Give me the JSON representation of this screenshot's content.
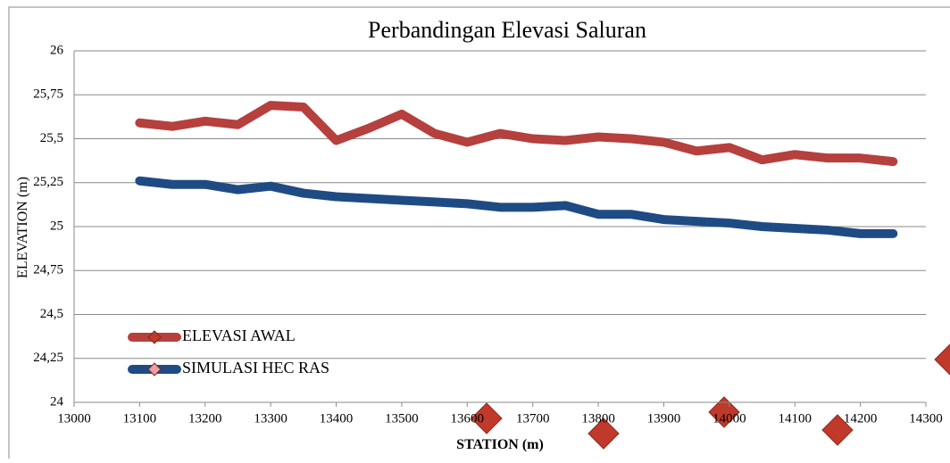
{
  "chart_data": {
    "type": "line",
    "title": "Perbandingan Elevasi Saluran",
    "x_label": "STATION (m)",
    "y_label": "ELEVATION (m)",
    "x": [
      13100,
      13150,
      13200,
      13250,
      13300,
      13350,
      13400,
      13450,
      13500,
      13550,
      13600,
      13650,
      13700,
      13750,
      13800,
      13850,
      13900,
      13950,
      14000,
      14050,
      14100,
      14150,
      14200,
      14250
    ],
    "series": [
      {
        "name": "ELEVASI AWAL",
        "color": "#b5403d",
        "values": [
          25.59,
          25.57,
          25.6,
          25.58,
          25.69,
          25.68,
          25.49,
          25.56,
          25.64,
          25.53,
          25.48,
          25.53,
          25.5,
          25.49,
          25.51,
          25.5,
          25.48,
          25.43,
          25.45,
          25.38,
          25.41,
          25.39,
          25.39,
          25.37
        ]
      },
      {
        "name": "SIMULASI HEC RAS",
        "color": "#1f4b85",
        "values": [
          25.26,
          25.24,
          25.24,
          25.21,
          25.23,
          25.19,
          25.17,
          25.16,
          25.15,
          25.14,
          25.13,
          25.11,
          25.11,
          25.12,
          25.07,
          25.07,
          25.04,
          25.03,
          25.02,
          25.0,
          24.99,
          24.98,
          24.96,
          24.96
        ]
      }
    ],
    "xlim": [
      13000,
      14300
    ],
    "xticks": [
      13000,
      13100,
      13200,
      13300,
      13400,
      13500,
      13600,
      13700,
      13800,
      13900,
      14000,
      14100,
      14200,
      14300
    ],
    "ylim": [
      24,
      26
    ],
    "yticks": [
      24,
      {
        "value": 24.25,
        "label": "24,25"
      },
      {
        "value": 24.5,
        "label": "24,5"
      },
      {
        "value": 24.75,
        "label": "24,75"
      },
      25,
      {
        "value": 25.25,
        "label": "25,25"
      },
      {
        "value": 25.5,
        "label": "25,5"
      },
      {
        "value": 25.75,
        "label": "25,75"
      },
      26
    ],
    "grid": true,
    "legend": "lower left"
  }
}
